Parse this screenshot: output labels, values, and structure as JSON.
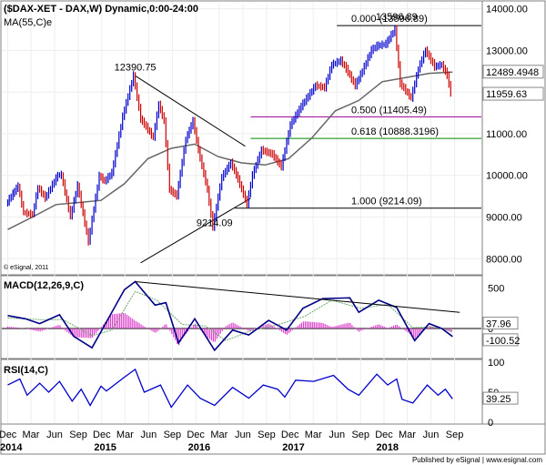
{
  "chart_data": {
    "type": "line",
    "instrument_label": "($DAX-XET - DAX,W) Dynamic,0:00-24:00",
    "ma_label": "MA(55,C)e",
    "copyright": "© eSignal, 2011",
    "footer": "Published by eSignal  |  www.esignal.com",
    "price_axis": {
      "ticks": [
        "14000.00",
        "13000.00",
        "12000.00",
        "11000.00",
        "10000.00",
        "9000.00",
        "8000.00"
      ],
      "ylim": [
        7700,
        14080
      ]
    },
    "price_tags": [
      {
        "label": "12489.4948",
        "value": 12489.49,
        "bg": "#ffffff",
        "fg": "#000000"
      },
      {
        "label": "11959.63",
        "value": 11959.63,
        "bg": "#ffffff",
        "fg": "#cc0000"
      }
    ],
    "annotations": [
      {
        "label": "12390.75",
        "date": "2015-04-10",
        "value": 12390.75
      },
      {
        "label": "13596.89",
        "date": "2018-01-19",
        "value": 13596.89
      },
      {
        "label": "9214.09",
        "date": "2016-02-12",
        "value": 9214.09
      }
    ],
    "fib_levels": [
      {
        "label": "0.000 (13596.89)",
        "value": 13596.89,
        "color": "#000000"
      },
      {
        "label": "0.500 (11405.49)",
        "value": 11405.49,
        "color": "#990099"
      },
      {
        "label": "0.618 (10888.3196)",
        "value": 10888.32,
        "color": "#008800"
      },
      {
        "label": "1.000 (9214.09)",
        "value": 9214.09,
        "color": "#000000"
      }
    ],
    "trendlines": [
      {
        "from": [
          "2015-04-10",
          12390.75
        ],
        "to": [
          "2016-06-10",
          10700
        ]
      },
      {
        "from": [
          "2015-05-01",
          7900
        ],
        "to": [
          "2016-07-01",
          9450
        ]
      }
    ],
    "x_axis": {
      "months": [
        {
          "label": "Dec",
          "date": "2013-12-01"
        },
        {
          "label": "Mar",
          "date": "2014-03-01"
        },
        {
          "label": "Jun",
          "date": "2014-06-01"
        },
        {
          "label": "Sep",
          "date": "2014-09-01"
        },
        {
          "label": "Dec",
          "date": "2014-12-01"
        },
        {
          "label": "Mar",
          "date": "2015-03-01"
        },
        {
          "label": "Jun",
          "date": "2015-06-01"
        },
        {
          "label": "Sep",
          "date": "2015-09-01"
        },
        {
          "label": "Dec",
          "date": "2015-12-01"
        },
        {
          "label": "Mar",
          "date": "2016-03-01"
        },
        {
          "label": "Jun",
          "date": "2016-06-01"
        },
        {
          "label": "Sep",
          "date": "2016-09-01"
        },
        {
          "label": "Dec",
          "date": "2016-12-01"
        },
        {
          "label": "Mar",
          "date": "2017-03-01"
        },
        {
          "label": "Jun",
          "date": "2017-06-01"
        },
        {
          "label": "Sep",
          "date": "2017-09-01"
        },
        {
          "label": "Dec",
          "date": "2017-12-01"
        },
        {
          "label": "Mar",
          "date": "2018-03-01"
        },
        {
          "label": "Jun",
          "date": "2018-06-01"
        },
        {
          "label": "Sep",
          "date": "2018-09-01"
        }
      ],
      "years": [
        {
          "label": "2014",
          "date": "2014-01-01"
        },
        {
          "label": "2015",
          "date": "2015-01-01"
        },
        {
          "label": "2016",
          "date": "2016-01-01"
        },
        {
          "label": "2017",
          "date": "2017-01-01"
        },
        {
          "label": "2018",
          "date": "2018-01-01"
        }
      ]
    },
    "price_path": [
      [
        "2013-12-01",
        9300
      ],
      [
        "2014-01-17",
        9740
      ],
      [
        "2014-02-07",
        9100
      ],
      [
        "2014-03-14",
        9050
      ],
      [
        "2014-04-04",
        9700
      ],
      [
        "2014-05-02",
        9450
      ],
      [
        "2014-06-20",
        10000
      ],
      [
        "2014-07-04",
        10000
      ],
      [
        "2014-08-08",
        9000
      ],
      [
        "2014-09-05",
        9750
      ],
      [
        "2014-10-17",
        8400
      ],
      [
        "2014-11-28",
        9980
      ],
      [
        "2014-12-19",
        9850
      ],
      [
        "2015-01-16",
        10050
      ],
      [
        "2015-02-27",
        11400
      ],
      [
        "2015-04-10",
        12390
      ],
      [
        "2015-05-08",
        11350
      ],
      [
        "2015-06-26",
        10900
      ],
      [
        "2015-07-17",
        11700
      ],
      [
        "2015-08-07",
        11300
      ],
      [
        "2015-08-28",
        9650
      ],
      [
        "2015-09-25",
        9500
      ],
      [
        "2015-10-30",
        10850
      ],
      [
        "2015-11-27",
        11300
      ],
      [
        "2015-12-18",
        10600
      ],
      [
        "2016-01-22",
        9650
      ],
      [
        "2016-02-12",
        8750
      ],
      [
        "2016-03-18",
        9950
      ],
      [
        "2016-04-22",
        10300
      ],
      [
        "2016-05-20",
        9900
      ],
      [
        "2016-06-24",
        9300
      ],
      [
        "2016-07-15",
        10000
      ],
      [
        "2016-08-19",
        10600
      ],
      [
        "2016-09-30",
        10500
      ],
      [
        "2016-11-04",
        10200
      ],
      [
        "2016-12-09",
        11200
      ],
      [
        "2017-01-20",
        11650
      ],
      [
        "2017-02-17",
        11900
      ],
      [
        "2017-03-17",
        12150
      ],
      [
        "2017-04-21",
        12100
      ],
      [
        "2017-05-19",
        12650
      ],
      [
        "2017-06-23",
        12750
      ],
      [
        "2017-07-14",
        12550
      ],
      [
        "2017-08-18",
        12150
      ],
      [
        "2017-09-15",
        12500
      ],
      [
        "2017-10-20",
        13000
      ],
      [
        "2017-11-10",
        13100
      ],
      [
        "2017-12-15",
        13150
      ],
      [
        "2018-01-19",
        13500
      ],
      [
        "2018-02-09",
        12200
      ],
      [
        "2018-03-23",
        11850
      ],
      [
        "2018-04-20",
        12550
      ],
      [
        "2018-05-18",
        13000
      ],
      [
        "2018-06-22",
        12600
      ],
      [
        "2018-07-20",
        12650
      ],
      [
        "2018-08-10",
        12400
      ],
      [
        "2018-08-24",
        11960
      ]
    ],
    "ma_path": [
      [
        "2013-12-01",
        8700
      ],
      [
        "2014-03-07",
        9000
      ],
      [
        "2014-06-06",
        9300
      ],
      [
        "2014-09-05",
        9350
      ],
      [
        "2014-11-28",
        9400
      ],
      [
        "2015-02-27",
        9800
      ],
      [
        "2015-05-29",
        10400
      ],
      [
        "2015-08-28",
        10650
      ],
      [
        "2015-11-27",
        10750
      ],
      [
        "2016-02-26",
        10450
      ],
      [
        "2016-05-27",
        10300
      ],
      [
        "2016-08-26",
        10250
      ],
      [
        "2016-11-25",
        10400
      ],
      [
        "2017-02-24",
        10900
      ],
      [
        "2017-05-26",
        11550
      ],
      [
        "2017-08-25",
        11800
      ],
      [
        "2017-11-24",
        12250
      ],
      [
        "2018-02-23",
        12350
      ],
      [
        "2018-05-25",
        12450
      ],
      [
        "2018-08-24",
        12480
      ]
    ],
    "macd": {
      "label": "MACD(12,26,9,C)",
      "ticks": [
        "500",
        "0"
      ],
      "ylim": [
        -350,
        620
      ],
      "tags": [
        {
          "label": "37.96",
          "value": 37.96,
          "bg": "#ffffff",
          "fg": "#000000"
        },
        {
          "label": "-100.52",
          "value": -100.52,
          "bg": "#ffffff",
          "fg": "#000000"
        }
      ],
      "line": [
        [
          "2013-12-01",
          160
        ],
        [
          "2014-02-07",
          120
        ],
        [
          "2014-04-04",
          60
        ],
        [
          "2014-06-20",
          170
        ],
        [
          "2014-08-15",
          -100
        ],
        [
          "2014-10-24",
          -240
        ],
        [
          "2014-12-19",
          80
        ],
        [
          "2015-02-27",
          480
        ],
        [
          "2015-04-10",
          580
        ],
        [
          "2015-06-26",
          290
        ],
        [
          "2015-08-07",
          320
        ],
        [
          "2015-09-25",
          -180
        ],
        [
          "2015-11-27",
          120
        ],
        [
          "2016-02-12",
          -270
        ],
        [
          "2016-04-22",
          -20
        ],
        [
          "2016-06-24",
          -80
        ],
        [
          "2016-09-09",
          100
        ],
        [
          "2016-11-18",
          -20
        ],
        [
          "2017-01-20",
          250
        ],
        [
          "2017-04-07",
          370
        ],
        [
          "2017-07-21",
          380
        ],
        [
          "2017-08-25",
          200
        ],
        [
          "2017-11-10",
          350
        ],
        [
          "2018-01-19",
          260
        ],
        [
          "2018-03-30",
          -150
        ],
        [
          "2018-05-25",
          60
        ],
        [
          "2018-07-13",
          0
        ],
        [
          "2018-08-24",
          -100
        ]
      ],
      "signal": [
        [
          "2013-12-01",
          130
        ],
        [
          "2014-04-04",
          110
        ],
        [
          "2014-07-04",
          110
        ],
        [
          "2014-10-24",
          -90
        ],
        [
          "2015-01-09",
          -20
        ],
        [
          "2015-04-10",
          460
        ],
        [
          "2015-07-03",
          350
        ],
        [
          "2015-10-09",
          50
        ],
        [
          "2016-01-08",
          30
        ],
        [
          "2016-03-25",
          -150
        ],
        [
          "2016-07-01",
          -30
        ],
        [
          "2016-10-07",
          40
        ],
        [
          "2017-01-27",
          150
        ],
        [
          "2017-05-12",
          350
        ],
        [
          "2017-09-01",
          250
        ],
        [
          "2017-12-15",
          300
        ],
        [
          "2018-03-23",
          10
        ],
        [
          "2018-06-08",
          20
        ],
        [
          "2018-08-24",
          -30
        ]
      ],
      "trendline": {
        "from": [
          "2015-04-10",
          580
        ],
        "to": [
          "2018-09-21",
          200
        ]
      }
    },
    "rsi": {
      "label": "RSI(14,C)",
      "ticks": [
        "100",
        "50",
        "0"
      ],
      "ylim": [
        0,
        100
      ],
      "tag": {
        "label": "39.25",
        "value": 39.25,
        "bg": "#ffffff",
        "fg": "#000000"
      },
      "line": [
        [
          "2013-12-01",
          62
        ],
        [
          "2014-01-17",
          72
        ],
        [
          "2014-02-14",
          45
        ],
        [
          "2014-04-04",
          65
        ],
        [
          "2014-05-09",
          50
        ],
        [
          "2014-06-20",
          68
        ],
        [
          "2014-08-08",
          35
        ],
        [
          "2014-09-12",
          55
        ],
        [
          "2014-10-17",
          28
        ],
        [
          "2014-11-28",
          60
        ],
        [
          "2014-12-19",
          52
        ],
        [
          "2015-02-27",
          75
        ],
        [
          "2015-04-10",
          88
        ],
        [
          "2015-05-15",
          50
        ],
        [
          "2015-07-17",
          62
        ],
        [
          "2015-08-28",
          25
        ],
        [
          "2015-10-30",
          62
        ],
        [
          "2015-12-18",
          40
        ],
        [
          "2016-02-12",
          28
        ],
        [
          "2016-04-22",
          58
        ],
        [
          "2016-06-24",
          40
        ],
        [
          "2016-08-19",
          62
        ],
        [
          "2016-10-14",
          55
        ],
        [
          "2016-11-11",
          42
        ],
        [
          "2016-12-23",
          70
        ],
        [
          "2017-03-03",
          68
        ],
        [
          "2017-05-19",
          78
        ],
        [
          "2017-07-14",
          55
        ],
        [
          "2017-08-25",
          45
        ],
        [
          "2017-11-03",
          80
        ],
        [
          "2017-12-15",
          62
        ],
        [
          "2018-01-19",
          72
        ],
        [
          "2018-02-09",
          38
        ],
        [
          "2018-03-23",
          32
        ],
        [
          "2018-05-18",
          62
        ],
        [
          "2018-06-29",
          45
        ],
        [
          "2018-07-27",
          55
        ],
        [
          "2018-08-24",
          39
        ]
      ]
    }
  }
}
